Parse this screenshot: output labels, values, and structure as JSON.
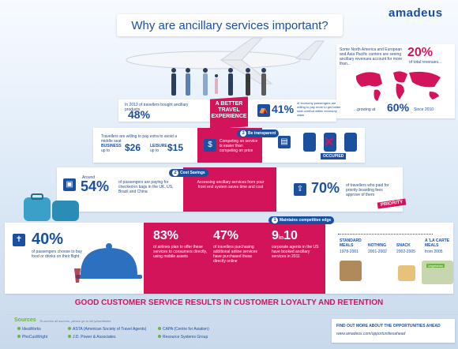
{
  "header": {
    "logo": "amadeus",
    "title": "Why are ancillary services important?"
  },
  "top_right": {
    "desc": "Some North America and European and Asia Pacific carriers are seeing ancillary revenues account for more than...",
    "stat": "20%",
    "stat_label": "of total revenues...",
    "growing_prefix": "...growing at",
    "growing_stat": "60%",
    "growing_suffix": "Since 2010"
  },
  "hero": {
    "line1": "A BETTER",
    "line2": "TRAVEL",
    "line3": "EXPERIENCE"
  },
  "tier1": {
    "left_desc": "In 2013 of travellers bought ancillary products",
    "left_stat": "48%",
    "right_stat": "41%",
    "right_desc": "of economy passengers are willing to pay more to get better seat comfort within economy class"
  },
  "tier2": {
    "left_desc": "Travellers are willing to pay extra to avoid a middle seat",
    "business_label": "BUSINESS",
    "business_sub": "up to",
    "business_value": "$26",
    "leisure_label": "LEISURE",
    "leisure_sub": "up to",
    "leisure_value": "$15",
    "tag": "Be transparent",
    "center_desc": "Competing on service is easier than competing on price",
    "occupied": "OCCUPIED"
  },
  "tier3": {
    "tag": "Cost Savings",
    "left_around": "Around",
    "left_stat": "54%",
    "left_desc": "of passengers are paying for checked-in bags in the UK, US, Brazil and China",
    "center_desc": "Accessing ancillary services from your front end system saves time and cost",
    "right_stat": "70%",
    "right_desc": "of travellers who paid for priority boarding fees approve of them",
    "priority": "PRIORITY"
  },
  "tier4": {
    "tag": "Maintains competitive edge",
    "left_stat": "40%",
    "left_desc": "of passengers choose to buy food or drinks on their flight",
    "stat_a": "83%",
    "desc_a": "of airlines plan to offer these services to consumers directly, using mobile assets",
    "stat_b": "47%",
    "desc_b": "of travellers purchasing additional airline services have purchased these directly online",
    "stat_c_num": "9",
    "stat_c_in": "in",
    "stat_c_den": "10",
    "desc_c": "corporate agents in the US have booked ancillary services in 2011",
    "timeline": [
      {
        "label": "STANDARD MEALS",
        "years": "1978-2001"
      },
      {
        "label": "NOTHING",
        "years": "2001-2002"
      },
      {
        "label": "SNACK",
        "years": "2002-2005"
      },
      {
        "label": "A 'LA CARTE MEALS",
        "years": "from 2005"
      }
    ],
    "vegetarian": "Vegetarian"
  },
  "footer": {
    "title": "GOOD CUSTOMER SERVICE RESULTS IN CUSTOMER LOYALTY AND RETENTION",
    "sources_label": "Sources",
    "sources_note": "To access all sources, please go to bit.ly/ancillaries",
    "sources": [
      "IdeaWorks",
      "PhoCusWright",
      "ASTA (American Society of Travel Agents)",
      "J.D. Power & Associates",
      "CAPA (Centre for Aviation)",
      "Resource Systems Group"
    ],
    "cta_title": "FIND OUT MORE ABOUT THE OPPORTUNITIES AHEAD",
    "cta_url": "www.amadeus.com/opportunitiesahead"
  },
  "colors": {
    "brand": "#1b4fa0",
    "accent": "#d4145a",
    "green": "#6bb43f"
  }
}
